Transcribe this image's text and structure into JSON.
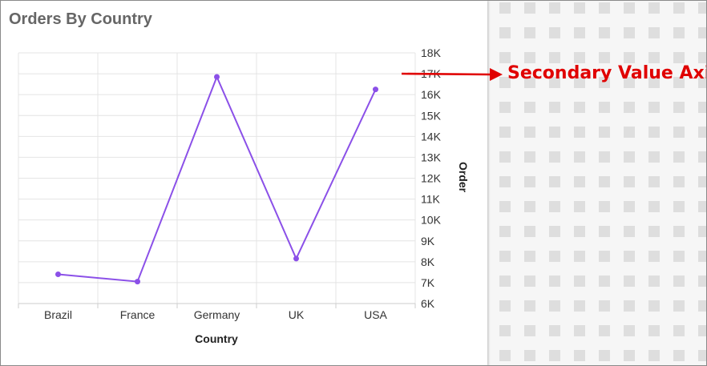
{
  "card": {
    "title": "Orders By Country"
  },
  "annotation": {
    "text": "Secondary Value Axis",
    "color": "#e00000"
  },
  "chart_data": {
    "type": "line",
    "categories": [
      "Brazil",
      "France",
      "Germany",
      "UK",
      "USA"
    ],
    "series": [
      {
        "values": [
          7400,
          7050,
          16850,
          8150,
          16250
        ],
        "color": "#8b50e8"
      }
    ],
    "xlabel": "Country",
    "ylabel": "Order",
    "ylim": [
      6000,
      18000
    ],
    "yticks": [
      "6K",
      "7K",
      "8K",
      "9K",
      "10K",
      "11K",
      "12K",
      "13K",
      "14K",
      "15K",
      "16K",
      "17K",
      "18K"
    ],
    "y_axis_position": "right",
    "grid": true
  }
}
